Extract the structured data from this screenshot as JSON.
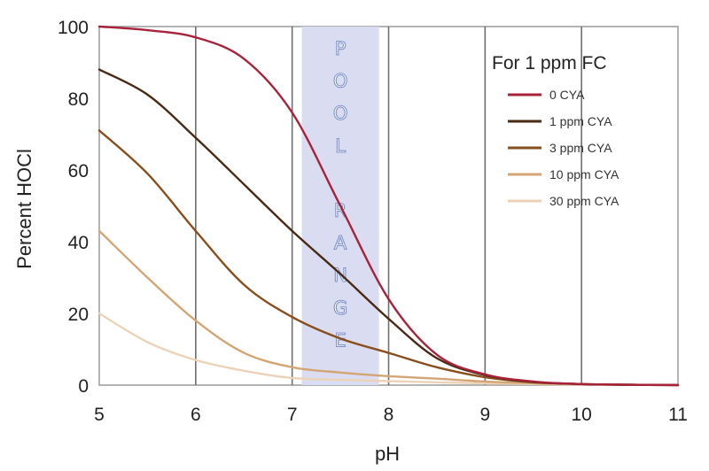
{
  "chart_data": {
    "type": "line",
    "title": "",
    "xlabel": "pH",
    "ylabel": "Percent HOCl",
    "xlim": [
      5,
      11
    ],
    "ylim": [
      0,
      100
    ],
    "xticks": [
      "5",
      "6",
      "7",
      "8",
      "9",
      "10",
      "11"
    ],
    "yticks": [
      "0",
      "20",
      "40",
      "60",
      "80",
      "100"
    ],
    "grid": "vertical",
    "legend": {
      "title": "For 1 ppm FC",
      "placement": "top-right"
    },
    "shaded_region": {
      "x_range": [
        7.1,
        7.9
      ],
      "text": "POOL RANGE",
      "color": "#d8dbf0"
    },
    "x": [
      5,
      5.5,
      6,
      6.5,
      7,
      7.5,
      8,
      8.5,
      9,
      9.5,
      10,
      10.5,
      11
    ],
    "series": [
      {
        "name": "0 CYA",
        "color": "#a8233a",
        "values": [
          100,
          99,
          97,
          91,
          76,
          50,
          24,
          8.5,
          3,
          1,
          0.3,
          0.1,
          0
        ]
      },
      {
        "name": "1 ppm CYA",
        "color": "#4a2a14",
        "values": [
          88,
          81,
          69,
          56,
          43,
          31,
          18.5,
          7.5,
          2.8,
          0.9,
          0.3,
          0.1,
          0
        ]
      },
      {
        "name": "3 ppm CYA",
        "color": "#8a4e1c",
        "values": [
          71,
          59,
          43,
          28,
          19,
          13,
          9,
          5,
          2.2,
          0.8,
          0.3,
          0.1,
          0
        ]
      },
      {
        "name": "10 ppm CYA",
        "color": "#d4a574",
        "values": [
          43,
          30,
          18,
          9,
          5,
          3.5,
          2.5,
          1.8,
          1,
          0.5,
          0.2,
          0.1,
          0
        ]
      },
      {
        "name": "30 ppm CYA",
        "color": "#ecd3b8",
        "values": [
          20,
          12,
          7,
          4,
          2,
          1.5,
          1.1,
          0.8,
          0.5,
          0.3,
          0.1,
          0.1,
          0
        ]
      }
    ]
  }
}
